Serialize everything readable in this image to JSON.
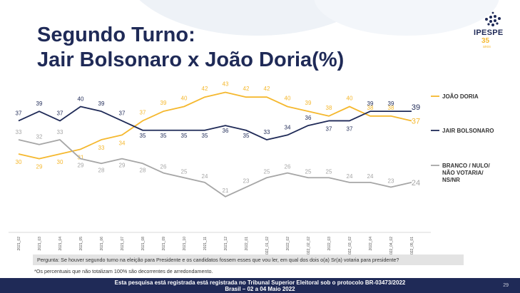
{
  "title_line1": "Segundo Turno:",
  "title_line2": "Jair Bolsonaro x João Doria(%)",
  "logo": {
    "name": "IPESPE",
    "sub": "35",
    "tag": "anos"
  },
  "question": "Pergunta:  Se houver segundo turno na eleição para Presidente e os candidatos fossem esses que vou ler, em qual dos dois o(a) Sr(a) votaria para presidente?",
  "note": "*Os percentuais que não totalizam 100% são decorrentes de arredondamento.",
  "footer_line1": "Esta pesquisa está registrada está registrada no Tribunal Superior Eleitoral sob o protocolo BR-03473/2022",
  "footer_line2": "Brasil – 02 a 04 Maio 2022",
  "page_number": "29",
  "colors": {
    "doria": "#f5b82e",
    "bolsonaro": "#1f2a57",
    "branco": "#a6a6a6"
  },
  "chart_data": {
    "type": "line",
    "x": [
      "2021_02",
      "2021_03",
      "2021_04",
      "2021_05",
      "2021_06",
      "2021_07",
      "2021_08",
      "2021_09",
      "2021_10",
      "2021_11",
      "2021_12",
      "2022_01",
      "2022_01_02",
      "2022_02",
      "2022_02_02",
      "2022_03",
      "2022_03_02",
      "2022_04",
      "2022_04_02",
      "2022_05_01"
    ],
    "series": [
      {
        "name": "JOÃO DORIA",
        "color": "#f5b82e",
        "values": [
          30,
          29,
          30,
          31,
          33,
          34,
          37,
          39,
          40,
          42,
          43,
          42,
          42,
          40,
          39,
          38,
          40,
          38,
          38,
          37
        ]
      },
      {
        "name": "JAIR BOLSONARO",
        "color": "#1f2a57",
        "values": [
          37,
          39,
          37,
          40,
          39,
          37,
          35,
          35,
          35,
          35,
          36,
          35,
          33,
          34,
          36,
          37,
          37,
          39,
          39,
          39
        ]
      },
      {
        "name": "BRANCO / NULO/ NÃO VOTARIA/ NS/NR",
        "color": "#a6a6a6",
        "values": [
          33,
          32,
          33,
          29,
          28,
          29,
          28,
          26,
          25,
          24,
          21,
          23,
          25,
          26,
          25,
          25,
          24,
          24,
          23,
          24
        ]
      }
    ],
    "legend_position": "right",
    "grid": false
  }
}
